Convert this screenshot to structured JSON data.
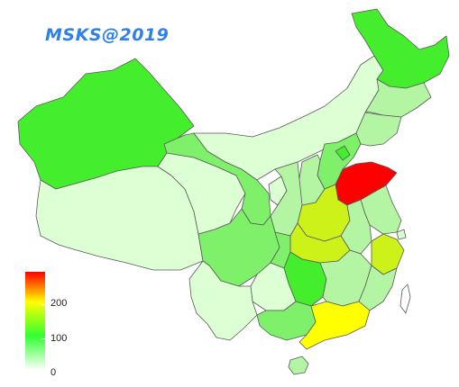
{
  "title": "MSKS@2019",
  "legend": {
    "ticks": [
      "200",
      "100",
      "0"
    ],
    "scale_min": 0,
    "scale_max": 280,
    "colors": [
      "#f6fff6",
      "#33ff33",
      "#ffff00",
      "#ff0000"
    ]
  },
  "colors": {
    "very_light": "#dcffd4",
    "light": "#b4f5a4",
    "medium": "#7ef06a",
    "green": "#44ee2c",
    "yellow_green": "#ccf21a",
    "yellow": "#ffff00",
    "red": "#ff0000",
    "border": "#5a5a5a"
  }
}
